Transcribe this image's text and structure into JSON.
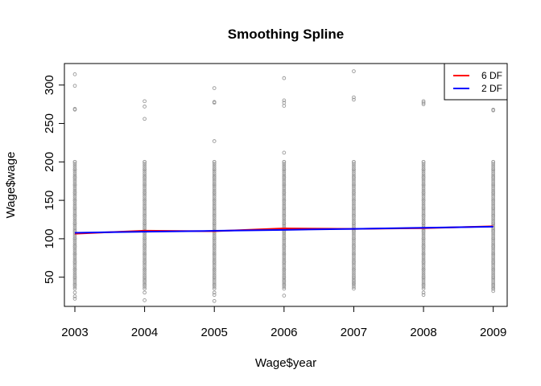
{
  "chart_data": {
    "type": "scatter",
    "title": "Smoothing Spline",
    "xlabel": "Wage$year",
    "ylabel": "Wage$wage",
    "xlim": [
      2002.85,
      2009.2
    ],
    "ylim": [
      12,
      328
    ],
    "x_ticks": [
      2003,
      2004,
      2005,
      2006,
      2007,
      2008,
      2009
    ],
    "y_ticks": [
      50,
      100,
      150,
      200,
      250,
      300
    ],
    "grid": false,
    "legend_position": "top-right",
    "point_color": "#999999",
    "points": [
      {
        "x": 2003,
        "wages": [
          314,
          299,
          269,
          268,
          200,
          190,
          180,
          170,
          160,
          150,
          140,
          130,
          120,
          110,
          100,
          90,
          80,
          70,
          60,
          50,
          40,
          30,
          25,
          22
        ]
      },
      {
        "x": 2004,
        "wages": [
          279,
          272,
          256,
          200,
          190,
          180,
          170,
          160,
          150,
          140,
          130,
          120,
          110,
          100,
          90,
          80,
          70,
          60,
          50,
          45,
          40,
          30,
          20
        ]
      },
      {
        "x": 2005,
        "wages": [
          296,
          278,
          277,
          227,
          200,
          190,
          180,
          170,
          160,
          150,
          140,
          130,
          120,
          110,
          100,
          90,
          80,
          70,
          60,
          50,
          40,
          30,
          27,
          19
        ]
      },
      {
        "x": 2006,
        "wages": [
          309,
          280,
          277,
          273,
          212,
          200,
          190,
          180,
          170,
          160,
          150,
          140,
          130,
          120,
          110,
          100,
          90,
          80,
          70,
          60,
          50,
          45,
          40,
          26
        ]
      },
      {
        "x": 2007,
        "wages": [
          318,
          284,
          281,
          200,
          190,
          180,
          170,
          160,
          150,
          140,
          130,
          120,
          110,
          100,
          90,
          80,
          70,
          60,
          50,
          45,
          42
        ]
      },
      {
        "x": 2008,
        "wages": [
          279,
          277,
          275,
          200,
          190,
          180,
          170,
          160,
          150,
          140,
          130,
          120,
          110,
          100,
          90,
          80,
          70,
          60,
          50,
          40,
          30,
          27
        ]
      },
      {
        "x": 2009,
        "wages": [
          268,
          267,
          200,
          190,
          180,
          170,
          160,
          150,
          140,
          130,
          120,
          110,
          100,
          90,
          80,
          70,
          60,
          50,
          40,
          35,
          32
        ]
      }
    ],
    "series": [
      {
        "name": "6 DF",
        "color": "#ff0000",
        "x": [
          2003,
          2004,
          2005,
          2006,
          2007,
          2008,
          2009
        ],
        "y": [
          106.5,
          110.5,
          109.8,
          113.5,
          112.8,
          113.8,
          116.2
        ]
      },
      {
        "name": "2 DF",
        "color": "#0000ff",
        "x": [
          2003,
          2004,
          2005,
          2006,
          2007,
          2008,
          2009
        ],
        "y": [
          107.8,
          109.2,
          110.3,
          111.6,
          112.9,
          114.3,
          115.7
        ]
      }
    ]
  }
}
